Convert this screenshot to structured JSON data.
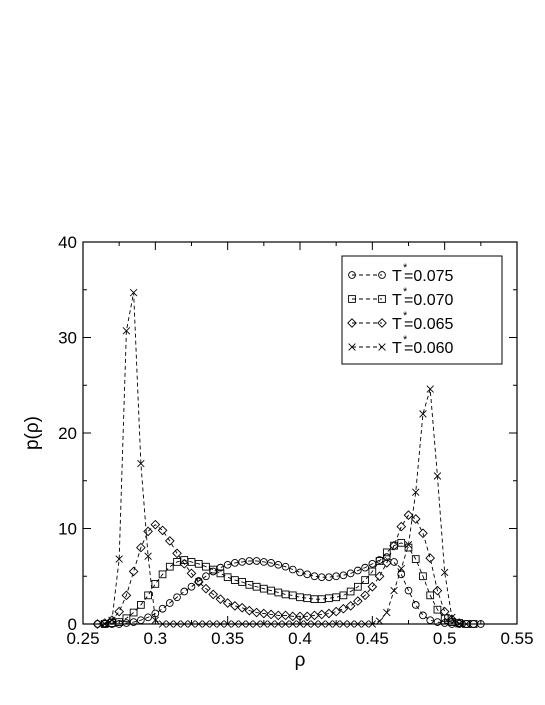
{
  "chart_data": {
    "type": "line",
    "title": "",
    "xlabel": "ρ",
    "ylabel": "p(ρ)",
    "xlim": [
      0.25,
      0.55
    ],
    "ylim": [
      0,
      40
    ],
    "xticks": [
      0.25,
      0.3,
      0.35,
      0.4,
      0.45,
      0.5,
      0.55
    ],
    "xtick_labels": [
      "0.25",
      "0.3",
      "0.35",
      "0.4",
      "0.45",
      "0.5",
      "0.55"
    ],
    "yticks": [
      0,
      10,
      20,
      30,
      40
    ],
    "ytick_labels": [
      "0",
      "10",
      "20",
      "30",
      "40"
    ],
    "grid": false,
    "legend_position": "top-right",
    "series": [
      {
        "name_prefix": "T",
        "name_sup": "*",
        "name_suffix": "=0.075",
        "marker": "circle",
        "line_style": "dashed",
        "color": "#000000",
        "x": [
          0.26,
          0.265,
          0.27,
          0.275,
          0.28,
          0.285,
          0.29,
          0.295,
          0.3,
          0.305,
          0.31,
          0.315,
          0.32,
          0.325,
          0.33,
          0.335,
          0.34,
          0.345,
          0.35,
          0.355,
          0.36,
          0.365,
          0.37,
          0.375,
          0.38,
          0.385,
          0.39,
          0.395,
          0.4,
          0.405,
          0.41,
          0.415,
          0.42,
          0.425,
          0.43,
          0.435,
          0.44,
          0.445,
          0.45,
          0.455,
          0.46,
          0.465,
          0.47,
          0.475,
          0.48,
          0.485,
          0.49,
          0.495,
          0.5,
          0.505,
          0.51,
          0.515,
          0.52,
          0.525
        ],
        "y": [
          0,
          0,
          0,
          0,
          0.1,
          0.2,
          0.4,
          0.7,
          1.1,
          1.6,
          2.2,
          2.8,
          3.4,
          3.9,
          4.5,
          5.0,
          5.5,
          5.9,
          6.2,
          6.4,
          6.5,
          6.6,
          6.6,
          6.5,
          6.4,
          6.2,
          6.0,
          5.7,
          5.4,
          5.2,
          5.0,
          4.9,
          4.9,
          5.0,
          5.1,
          5.3,
          5.6,
          5.9,
          6.3,
          6.7,
          7.0,
          6.5,
          5.2,
          3.5,
          2.0,
          0.9,
          0.4,
          0.2,
          0.1,
          0,
          0,
          0,
          0,
          0
        ]
      },
      {
        "name_prefix": "T",
        "name_sup": "*",
        "name_suffix": "=0.070",
        "marker": "square",
        "line_style": "dashed",
        "color": "#000000",
        "x": [
          0.265,
          0.27,
          0.275,
          0.28,
          0.285,
          0.29,
          0.295,
          0.3,
          0.305,
          0.31,
          0.315,
          0.32,
          0.325,
          0.33,
          0.335,
          0.34,
          0.345,
          0.35,
          0.355,
          0.36,
          0.365,
          0.37,
          0.375,
          0.38,
          0.385,
          0.39,
          0.395,
          0.4,
          0.405,
          0.41,
          0.415,
          0.42,
          0.425,
          0.43,
          0.435,
          0.44,
          0.445,
          0.45,
          0.455,
          0.46,
          0.465,
          0.47,
          0.475,
          0.48,
          0.485,
          0.49,
          0.495,
          0.5,
          0.505,
          0.51,
          0.515,
          0.52
        ],
        "y": [
          0,
          0.1,
          0.2,
          0.6,
          1.2,
          2.0,
          3.0,
          4.2,
          5.2,
          6.0,
          6.5,
          6.7,
          6.5,
          6.3,
          6.0,
          5.7,
          5.3,
          4.9,
          4.6,
          4.4,
          4.1,
          3.9,
          3.7,
          3.5,
          3.3,
          3.1,
          3.0,
          2.8,
          2.7,
          2.6,
          2.6,
          2.7,
          2.8,
          3.0,
          3.4,
          3.9,
          4.6,
          5.5,
          6.6,
          7.5,
          8.2,
          8.5,
          8.0,
          6.8,
          5.0,
          3.0,
          1.5,
          0.6,
          0.2,
          0.1,
          0,
          0
        ]
      },
      {
        "name_prefix": "T",
        "name_sup": "*",
        "name_suffix": "=0.065",
        "marker": "diamond",
        "line_style": "dashed",
        "color": "#000000",
        "x": [
          0.26,
          0.265,
          0.27,
          0.275,
          0.28,
          0.285,
          0.29,
          0.295,
          0.3,
          0.305,
          0.31,
          0.315,
          0.32,
          0.325,
          0.33,
          0.335,
          0.34,
          0.345,
          0.35,
          0.355,
          0.36,
          0.365,
          0.37,
          0.375,
          0.38,
          0.385,
          0.39,
          0.395,
          0.4,
          0.405,
          0.41,
          0.415,
          0.42,
          0.425,
          0.43,
          0.435,
          0.44,
          0.445,
          0.45,
          0.455,
          0.46,
          0.465,
          0.47,
          0.475,
          0.48,
          0.485,
          0.49,
          0.495,
          0.5,
          0.505,
          0.51
        ],
        "y": [
          0,
          0.1,
          0.4,
          1.3,
          3.0,
          5.5,
          8.0,
          9.7,
          10.4,
          9.8,
          8.7,
          7.4,
          6.3,
          5.3,
          4.4,
          3.7,
          3.1,
          2.6,
          2.2,
          1.9,
          1.7,
          1.4,
          1.2,
          1.1,
          1.0,
          0.9,
          0.9,
          0.8,
          0.8,
          0.8,
          0.9,
          1.0,
          1.1,
          1.3,
          1.6,
          1.9,
          2.4,
          3.0,
          3.9,
          5.0,
          6.4,
          8.2,
          10.2,
          11.4,
          11.0,
          9.5,
          6.9,
          3.5,
          1.3,
          0.5,
          0.1
        ]
      },
      {
        "name_prefix": "T",
        "name_sup": "*",
        "name_suffix": "=0.060",
        "marker": "cross",
        "line_style": "dashed",
        "color": "#000000",
        "x": [
          0.265,
          0.27,
          0.275,
          0.28,
          0.285,
          0.29,
          0.295,
          0.3,
          0.305,
          0.31,
          0.315,
          0.32,
          0.325,
          0.33,
          0.335,
          0.34,
          0.345,
          0.35,
          0.355,
          0.36,
          0.365,
          0.37,
          0.375,
          0.38,
          0.385,
          0.39,
          0.395,
          0.4,
          0.405,
          0.41,
          0.415,
          0.42,
          0.425,
          0.43,
          0.435,
          0.44,
          0.445,
          0.45,
          0.455,
          0.46,
          0.465,
          0.47,
          0.475,
          0.48,
          0.485,
          0.49,
          0.495,
          0.5,
          0.505,
          0.51,
          0.515
        ],
        "y": [
          0,
          0.4,
          6.8,
          30.7,
          34.7,
          16.8,
          7.1,
          0.4,
          0,
          0,
          0,
          0,
          0,
          0,
          0,
          0,
          0,
          0,
          0,
          0,
          0,
          0,
          0,
          0,
          0,
          0,
          0,
          0,
          0,
          0,
          0,
          0,
          0,
          0,
          0,
          0,
          0,
          0,
          0.3,
          1.2,
          3.5,
          5.8,
          8.3,
          13.8,
          22.0,
          24.6,
          15.5,
          5.4,
          0.7,
          0,
          0
        ]
      }
    ]
  }
}
